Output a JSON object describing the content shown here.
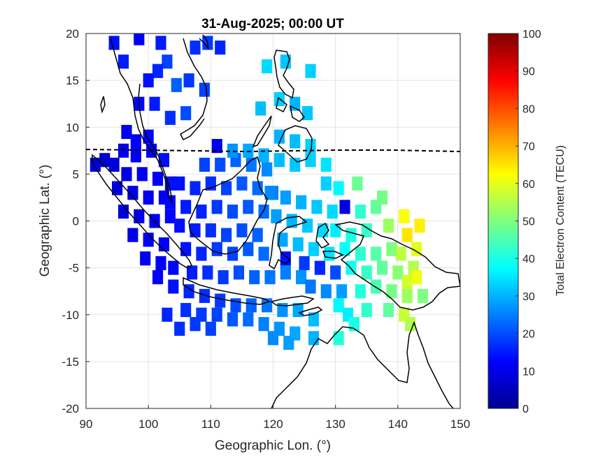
{
  "chart_data": {
    "type": "heatmap",
    "title": "31-Aug-2025; 00:00 UT",
    "xlabel": "Geographic Lon. (°)",
    "ylabel": "Geographic Lat. (°)",
    "xlim": [
      90,
      150
    ],
    "ylim": [
      -20,
      20
    ],
    "xticks": [
      90,
      100,
      110,
      120,
      130,
      140,
      150
    ],
    "xtick_labels": [
      "90",
      "100",
      "110",
      "120",
      "130",
      "140",
      "150"
    ],
    "yticks": [
      20,
      15,
      10,
      5,
      0,
      -5,
      -10,
      -15,
      -20
    ],
    "ytick_labels": [
      "20",
      "15",
      "10",
      "5",
      "0",
      "-5",
      "-10",
      "-15",
      "-20"
    ],
    "grid": true,
    "colormap": "jet",
    "colorbar": {
      "label": "Total Electron Content (TECU)",
      "range": [
        0,
        100
      ],
      "ticks": [
        0,
        10,
        20,
        30,
        40,
        50,
        60,
        70,
        80,
        90,
        100
      ],
      "tick_labels": [
        "0",
        "10",
        "20",
        "30",
        "40",
        "50",
        "60",
        "70",
        "80",
        "90",
        "100"
      ]
    },
    "magnetic_equator_dashed": true,
    "tec_cells": [
      {
        "lon": 94.5,
        "lat": 19.0,
        "tec": 14
      },
      {
        "lon": 98.5,
        "lat": 19.5,
        "tec": 12
      },
      {
        "lon": 102.0,
        "lat": 19.0,
        "tec": 15
      },
      {
        "lon": 107.5,
        "lat": 18.5,
        "tec": 17
      },
      {
        "lon": 109.5,
        "lat": 19.0,
        "tec": 18
      },
      {
        "lon": 111.5,
        "lat": 18.5,
        "tec": 16
      },
      {
        "lon": 103.0,
        "lat": 17.0,
        "tec": 19
      },
      {
        "lon": 96.0,
        "lat": 17.0,
        "tec": 15
      },
      {
        "lon": 101.5,
        "lat": 16.0,
        "tec": 16
      },
      {
        "lon": 100.0,
        "lat": 15.0,
        "tec": 14
      },
      {
        "lon": 104.5,
        "lat": 14.5,
        "tec": 22
      },
      {
        "lon": 106.5,
        "lat": 15.0,
        "tec": 18
      },
      {
        "lon": 109.0,
        "lat": 14.0,
        "tec": 19
      },
      {
        "lon": 98.5,
        "lat": 12.5,
        "tec": 13
      },
      {
        "lon": 101.0,
        "lat": 12.5,
        "tec": 15
      },
      {
        "lon": 103.5,
        "lat": 11.0,
        "tec": 17
      },
      {
        "lon": 106.0,
        "lat": 11.5,
        "tec": 20
      },
      {
        "lon": 119.0,
        "lat": 16.5,
        "tec": 34
      },
      {
        "lon": 122.0,
        "lat": 17.0,
        "tec": 32
      },
      {
        "lon": 126.0,
        "lat": 16.0,
        "tec": 33
      },
      {
        "lon": 118.0,
        "lat": 12.0,
        "tec": 31
      },
      {
        "lon": 121.0,
        "lat": 13.0,
        "tec": 33
      },
      {
        "lon": 123.5,
        "lat": 12.5,
        "tec": 30
      },
      {
        "lon": 125.5,
        "lat": 11.5,
        "tec": 32
      },
      {
        "lon": 96.5,
        "lat": 9.5,
        "tec": 11
      },
      {
        "lon": 98.0,
        "lat": 8.5,
        "tec": 12
      },
      {
        "lon": 100.0,
        "lat": 9.0,
        "tec": 13
      },
      {
        "lon": 96.0,
        "lat": 7.5,
        "tec": 10
      },
      {
        "lon": 98.0,
        "lat": 7.0,
        "tec": 11
      },
      {
        "lon": 100.5,
        "lat": 7.5,
        "tec": 12
      },
      {
        "lon": 102.5,
        "lat": 6.5,
        "tec": 14
      },
      {
        "lon": 94.5,
        "lat": 6.0,
        "tec": 9
      },
      {
        "lon": 93.0,
        "lat": 6.5,
        "tec": 8
      },
      {
        "lon": 91.5,
        "lat": 6.0,
        "tec": 9
      },
      {
        "lon": 96.5,
        "lat": 5.0,
        "tec": 10
      },
      {
        "lon": 99.0,
        "lat": 5.0,
        "tec": 11
      },
      {
        "lon": 101.5,
        "lat": 4.5,
        "tec": 12
      },
      {
        "lon": 103.5,
        "lat": 4.0,
        "tec": 14
      },
      {
        "lon": 95.0,
        "lat": 3.5,
        "tec": 9
      },
      {
        "lon": 97.5,
        "lat": 3.0,
        "tec": 10
      },
      {
        "lon": 100.0,
        "lat": 2.5,
        "tec": 11
      },
      {
        "lon": 102.5,
        "lat": 2.5,
        "tec": 12
      },
      {
        "lon": 96.0,
        "lat": 1.0,
        "tec": 9
      },
      {
        "lon": 98.5,
        "lat": 0.5,
        "tec": 10
      },
      {
        "lon": 101.0,
        "lat": 0.0,
        "tec": 11
      },
      {
        "lon": 103.5,
        "lat": 0.5,
        "tec": 13
      },
      {
        "lon": 97.5,
        "lat": -1.5,
        "tec": 10
      },
      {
        "lon": 100.0,
        "lat": -2.0,
        "tec": 11
      },
      {
        "lon": 102.5,
        "lat": -2.5,
        "tec": 12
      },
      {
        "lon": 99.5,
        "lat": -4.0,
        "tec": 11
      },
      {
        "lon": 102.0,
        "lat": -4.5,
        "tec": 12
      },
      {
        "lon": 104.0,
        "lat": -5.0,
        "tec": 13
      },
      {
        "lon": 101.5,
        "lat": -6.0,
        "tec": 12
      },
      {
        "lon": 104.0,
        "lat": -7.0,
        "tec": 14
      },
      {
        "lon": 106.5,
        "lat": -7.5,
        "tec": 16
      },
      {
        "lon": 109.0,
        "lat": -8.0,
        "tec": 17
      },
      {
        "lon": 111.5,
        "lat": -8.5,
        "tec": 18
      },
      {
        "lon": 114.0,
        "lat": -9.0,
        "tec": 20
      },
      {
        "lon": 116.5,
        "lat": -9.0,
        "tec": 22
      },
      {
        "lon": 119.0,
        "lat": -9.0,
        "tec": 24
      },
      {
        "lon": 121.5,
        "lat": -9.5,
        "tec": 27
      },
      {
        "lon": 124.0,
        "lat": -9.5,
        "tec": 29
      },
      {
        "lon": 126.5,
        "lat": -10.5,
        "tec": 31
      },
      {
        "lon": 106.0,
        "lat": -9.5,
        "tec": 17
      },
      {
        "lon": 108.5,
        "lat": -10.0,
        "tec": 18
      },
      {
        "lon": 111.0,
        "lat": -10.0,
        "tec": 19
      },
      {
        "lon": 113.5,
        "lat": -10.5,
        "tec": 21
      },
      {
        "lon": 116.0,
        "lat": -10.5,
        "tec": 23
      },
      {
        "lon": 118.5,
        "lat": -11.0,
        "tec": 25
      },
      {
        "lon": 121.0,
        "lat": -11.5,
        "tec": 27
      },
      {
        "lon": 123.5,
        "lat": -12.0,
        "tec": 29
      },
      {
        "lon": 103.0,
        "lat": -10.0,
        "tec": 16
      },
      {
        "lon": 105.0,
        "lat": -11.5,
        "tec": 17
      },
      {
        "lon": 107.5,
        "lat": -11.0,
        "tec": 18
      },
      {
        "lon": 110.0,
        "lat": -11.5,
        "tec": 19
      },
      {
        "lon": 120.0,
        "lat": -12.5,
        "tec": 26
      },
      {
        "lon": 122.5,
        "lat": -13.0,
        "tec": 28
      },
      {
        "lon": 126.5,
        "lat": -12.5,
        "tec": 30
      },
      {
        "lon": 103.5,
        "lat": 2.0,
        "tec": 13
      },
      {
        "lon": 106.0,
        "lat": 1.5,
        "tec": 15
      },
      {
        "lon": 108.5,
        "lat": 1.0,
        "tec": 16
      },
      {
        "lon": 111.0,
        "lat": 1.5,
        "tec": 18
      },
      {
        "lon": 113.5,
        "lat": 1.0,
        "tec": 20
      },
      {
        "lon": 116.0,
        "lat": 1.5,
        "tec": 21
      },
      {
        "lon": 118.5,
        "lat": 1.0,
        "tec": 23
      },
      {
        "lon": 105.0,
        "lat": -0.5,
        "tec": 14
      },
      {
        "lon": 107.5,
        "lat": -1.0,
        "tec": 15
      },
      {
        "lon": 110.0,
        "lat": -1.0,
        "tec": 17
      },
      {
        "lon": 112.5,
        "lat": -1.5,
        "tec": 19
      },
      {
        "lon": 115.0,
        "lat": -1.0,
        "tec": 20
      },
      {
        "lon": 117.5,
        "lat": -1.5,
        "tec": 22
      },
      {
        "lon": 106.0,
        "lat": -3.0,
        "tec": 14
      },
      {
        "lon": 108.5,
        "lat": -3.5,
        "tec": 16
      },
      {
        "lon": 111.0,
        "lat": -3.0,
        "tec": 18
      },
      {
        "lon": 113.5,
        "lat": -3.5,
        "tec": 19
      },
      {
        "lon": 116.0,
        "lat": -3.0,
        "tec": 21
      },
      {
        "lon": 118.5,
        "lat": -3.5,
        "tec": 23
      },
      {
        "lon": 107.0,
        "lat": -5.5,
        "tec": 15
      },
      {
        "lon": 109.5,
        "lat": -5.5,
        "tec": 17
      },
      {
        "lon": 112.0,
        "lat": -6.0,
        "tec": 18
      },
      {
        "lon": 114.5,
        "lat": -5.5,
        "tec": 20
      },
      {
        "lon": 117.0,
        "lat": -6.0,
        "tec": 22
      },
      {
        "lon": 119.5,
        "lat": -6.0,
        "tec": 24
      },
      {
        "lon": 122.0,
        "lat": -5.5,
        "tec": 25
      },
      {
        "lon": 124.5,
        "lat": -6.0,
        "tec": 27
      },
      {
        "lon": 105.0,
        "lat": 4.0,
        "tec": 14
      },
      {
        "lon": 107.5,
        "lat": 3.5,
        "tec": 16
      },
      {
        "lon": 110.0,
        "lat": 4.0,
        "tec": 17
      },
      {
        "lon": 112.5,
        "lat": 3.5,
        "tec": 19
      },
      {
        "lon": 115.0,
        "lat": 4.0,
        "tec": 21
      },
      {
        "lon": 117.5,
        "lat": 3.5,
        "tec": 23
      },
      {
        "lon": 120.0,
        "lat": 3.0,
        "tec": 25
      },
      {
        "lon": 109.0,
        "lat": 6.0,
        "tec": 19
      },
      {
        "lon": 111.5,
        "lat": 6.0,
        "tec": 20
      },
      {
        "lon": 114.0,
        "lat": 6.5,
        "tec": 22
      },
      {
        "lon": 116.5,
        "lat": 6.0,
        "tec": 24
      },
      {
        "lon": 119.0,
        "lat": 5.5,
        "tec": 26
      },
      {
        "lon": 111.0,
        "lat": 8.0,
        "tec": 11
      },
      {
        "lon": 113.5,
        "lat": 7.5,
        "tec": 27
      },
      {
        "lon": 116.0,
        "lat": 7.5,
        "tec": 29
      },
      {
        "lon": 118.5,
        "lat": 7.0,
        "tec": 30
      },
      {
        "lon": 121.0,
        "lat": 6.5,
        "tec": 31
      },
      {
        "lon": 123.5,
        "lat": 6.0,
        "tec": 32
      },
      {
        "lon": 126.0,
        "lat": 6.5,
        "tec": 33
      },
      {
        "lon": 128.5,
        "lat": 6.0,
        "tec": 35
      },
      {
        "lon": 121.0,
        "lat": 9.0,
        "tec": 30
      },
      {
        "lon": 123.5,
        "lat": 8.5,
        "tec": 31
      },
      {
        "lon": 126.0,
        "lat": 8.0,
        "tec": 33
      },
      {
        "lon": 119.5,
        "lat": 3.0,
        "tec": 26
      },
      {
        "lon": 122.0,
        "lat": 2.5,
        "tec": 28
      },
      {
        "lon": 124.5,
        "lat": 2.0,
        "tec": 30
      },
      {
        "lon": 127.0,
        "lat": 1.5,
        "tec": 32
      },
      {
        "lon": 129.5,
        "lat": 1.0,
        "tec": 34
      },
      {
        "lon": 120.5,
        "lat": 0.5,
        "tec": 28
      },
      {
        "lon": 123.0,
        "lat": 0.0,
        "tec": 30
      },
      {
        "lon": 125.5,
        "lat": -0.5,
        "tec": 32
      },
      {
        "lon": 128.0,
        "lat": -1.0,
        "tec": 34
      },
      {
        "lon": 121.5,
        "lat": -2.0,
        "tec": 29
      },
      {
        "lon": 124.0,
        "lat": -2.5,
        "tec": 31
      },
      {
        "lon": 126.5,
        "lat": -3.0,
        "tec": 33
      },
      {
        "lon": 129.0,
        "lat": -3.5,
        "tec": 35
      },
      {
        "lon": 122.0,
        "lat": -4.0,
        "tec": 14
      },
      {
        "lon": 125.0,
        "lat": -4.5,
        "tec": 18
      },
      {
        "lon": 127.5,
        "lat": -5.0,
        "tec": 16
      },
      {
        "lon": 130.0,
        "lat": -5.5,
        "tec": 20
      },
      {
        "lon": 126.0,
        "lat": -7.0,
        "tec": 24
      },
      {
        "lon": 128.5,
        "lat": -7.5,
        "tec": 26
      },
      {
        "lon": 131.0,
        "lat": -7.5,
        "tec": 28
      },
      {
        "lon": 128.5,
        "lat": 4.0,
        "tec": 33
      },
      {
        "lon": 130.5,
        "lat": 3.5,
        "tec": 37
      },
      {
        "lon": 131.5,
        "lat": 1.5,
        "tec": 10
      },
      {
        "lon": 130.0,
        "lat": -1.0,
        "tec": 36
      },
      {
        "lon": 132.5,
        "lat": -1.5,
        "tec": 40
      },
      {
        "lon": 135.0,
        "lat": -1.0,
        "tec": 43
      },
      {
        "lon": 131.5,
        "lat": -3.0,
        "tec": 38
      },
      {
        "lon": 134.0,
        "lat": -3.5,
        "tec": 42
      },
      {
        "lon": 136.5,
        "lat": -3.5,
        "tec": 46
      },
      {
        "lon": 139.0,
        "lat": -3.0,
        "tec": 50
      },
      {
        "lon": 132.5,
        "lat": -5.0,
        "tec": 39
      },
      {
        "lon": 135.0,
        "lat": -5.5,
        "tec": 43
      },
      {
        "lon": 137.5,
        "lat": -5.0,
        "tec": 47
      },
      {
        "lon": 140.0,
        "lat": -5.5,
        "tec": 51
      },
      {
        "lon": 142.5,
        "lat": -5.0,
        "tec": 55
      },
      {
        "lon": 134.0,
        "lat": -7.5,
        "tec": 41
      },
      {
        "lon": 136.5,
        "lat": -7.0,
        "tec": 45
      },
      {
        "lon": 139.0,
        "lat": -7.5,
        "tec": 49
      },
      {
        "lon": 141.5,
        "lat": -8.0,
        "tec": 53
      },
      {
        "lon": 144.0,
        "lat": -8.0,
        "tec": 50
      },
      {
        "lon": 130.5,
        "lat": -9.0,
        "tec": 37
      },
      {
        "lon": 132.0,
        "lat": -10.0,
        "tec": 36
      },
      {
        "lon": 135.0,
        "lat": -9.5,
        "tec": 42
      },
      {
        "lon": 138.5,
        "lat": -9.5,
        "tec": 47
      },
      {
        "lon": 141.0,
        "lat": -10.0,
        "tec": 57
      },
      {
        "lon": 142.0,
        "lat": -11.0,
        "tec": 55
      },
      {
        "lon": 133.0,
        "lat": -11.0,
        "tec": 40
      },
      {
        "lon": 130.5,
        "lat": -12.5,
        "tec": 41
      },
      {
        "lon": 133.5,
        "lat": 4.0,
        "tec": 48
      },
      {
        "lon": 136.5,
        "lat": 1.5,
        "tec": 47
      },
      {
        "lon": 138.5,
        "lat": -0.5,
        "tec": 53
      },
      {
        "lon": 141.0,
        "lat": 0.5,
        "tec": 62
      },
      {
        "lon": 141.5,
        "lat": -1.5,
        "tec": 65
      },
      {
        "lon": 143.5,
        "lat": -0.5,
        "tec": 64
      },
      {
        "lon": 140.5,
        "lat": -3.5,
        "tec": 56
      },
      {
        "lon": 143.0,
        "lat": -3.0,
        "tec": 60
      },
      {
        "lon": 141.5,
        "lat": -6.5,
        "tec": 58
      },
      {
        "lon": 143.0,
        "lat": -6.0,
        "tec": 61
      },
      {
        "lon": 137.5,
        "lat": 2.5,
        "tec": 49
      },
      {
        "lon": 134.0,
        "lat": 1.0,
        "tec": 42
      }
    ]
  }
}
